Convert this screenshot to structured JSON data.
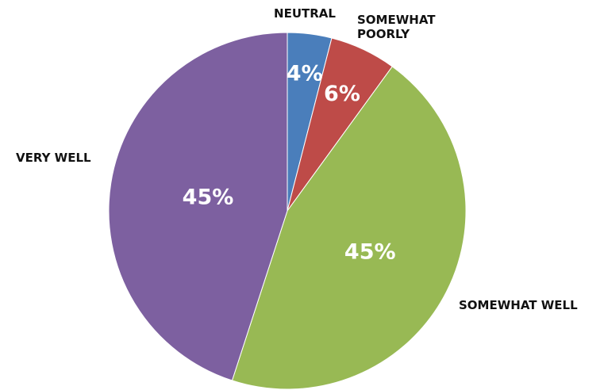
{
  "chart_data": {
    "type": "pie",
    "title": "",
    "slices": [
      {
        "label": "NEUTRAL",
        "value": 4,
        "display": "4%",
        "color": "#4a7ebb"
      },
      {
        "label": "SOMEWHAT POORLY",
        "value": 6,
        "display": "6%",
        "color": "#be4b48"
      },
      {
        "label": "SOMEWHAT WELL",
        "value": 45,
        "display": "45%",
        "color": "#98b954"
      },
      {
        "label": "VERY WELL",
        "value": 45,
        "display": "45%",
        "color": "#7d60a0"
      }
    ],
    "legend": "none",
    "category_labels": "outside"
  }
}
